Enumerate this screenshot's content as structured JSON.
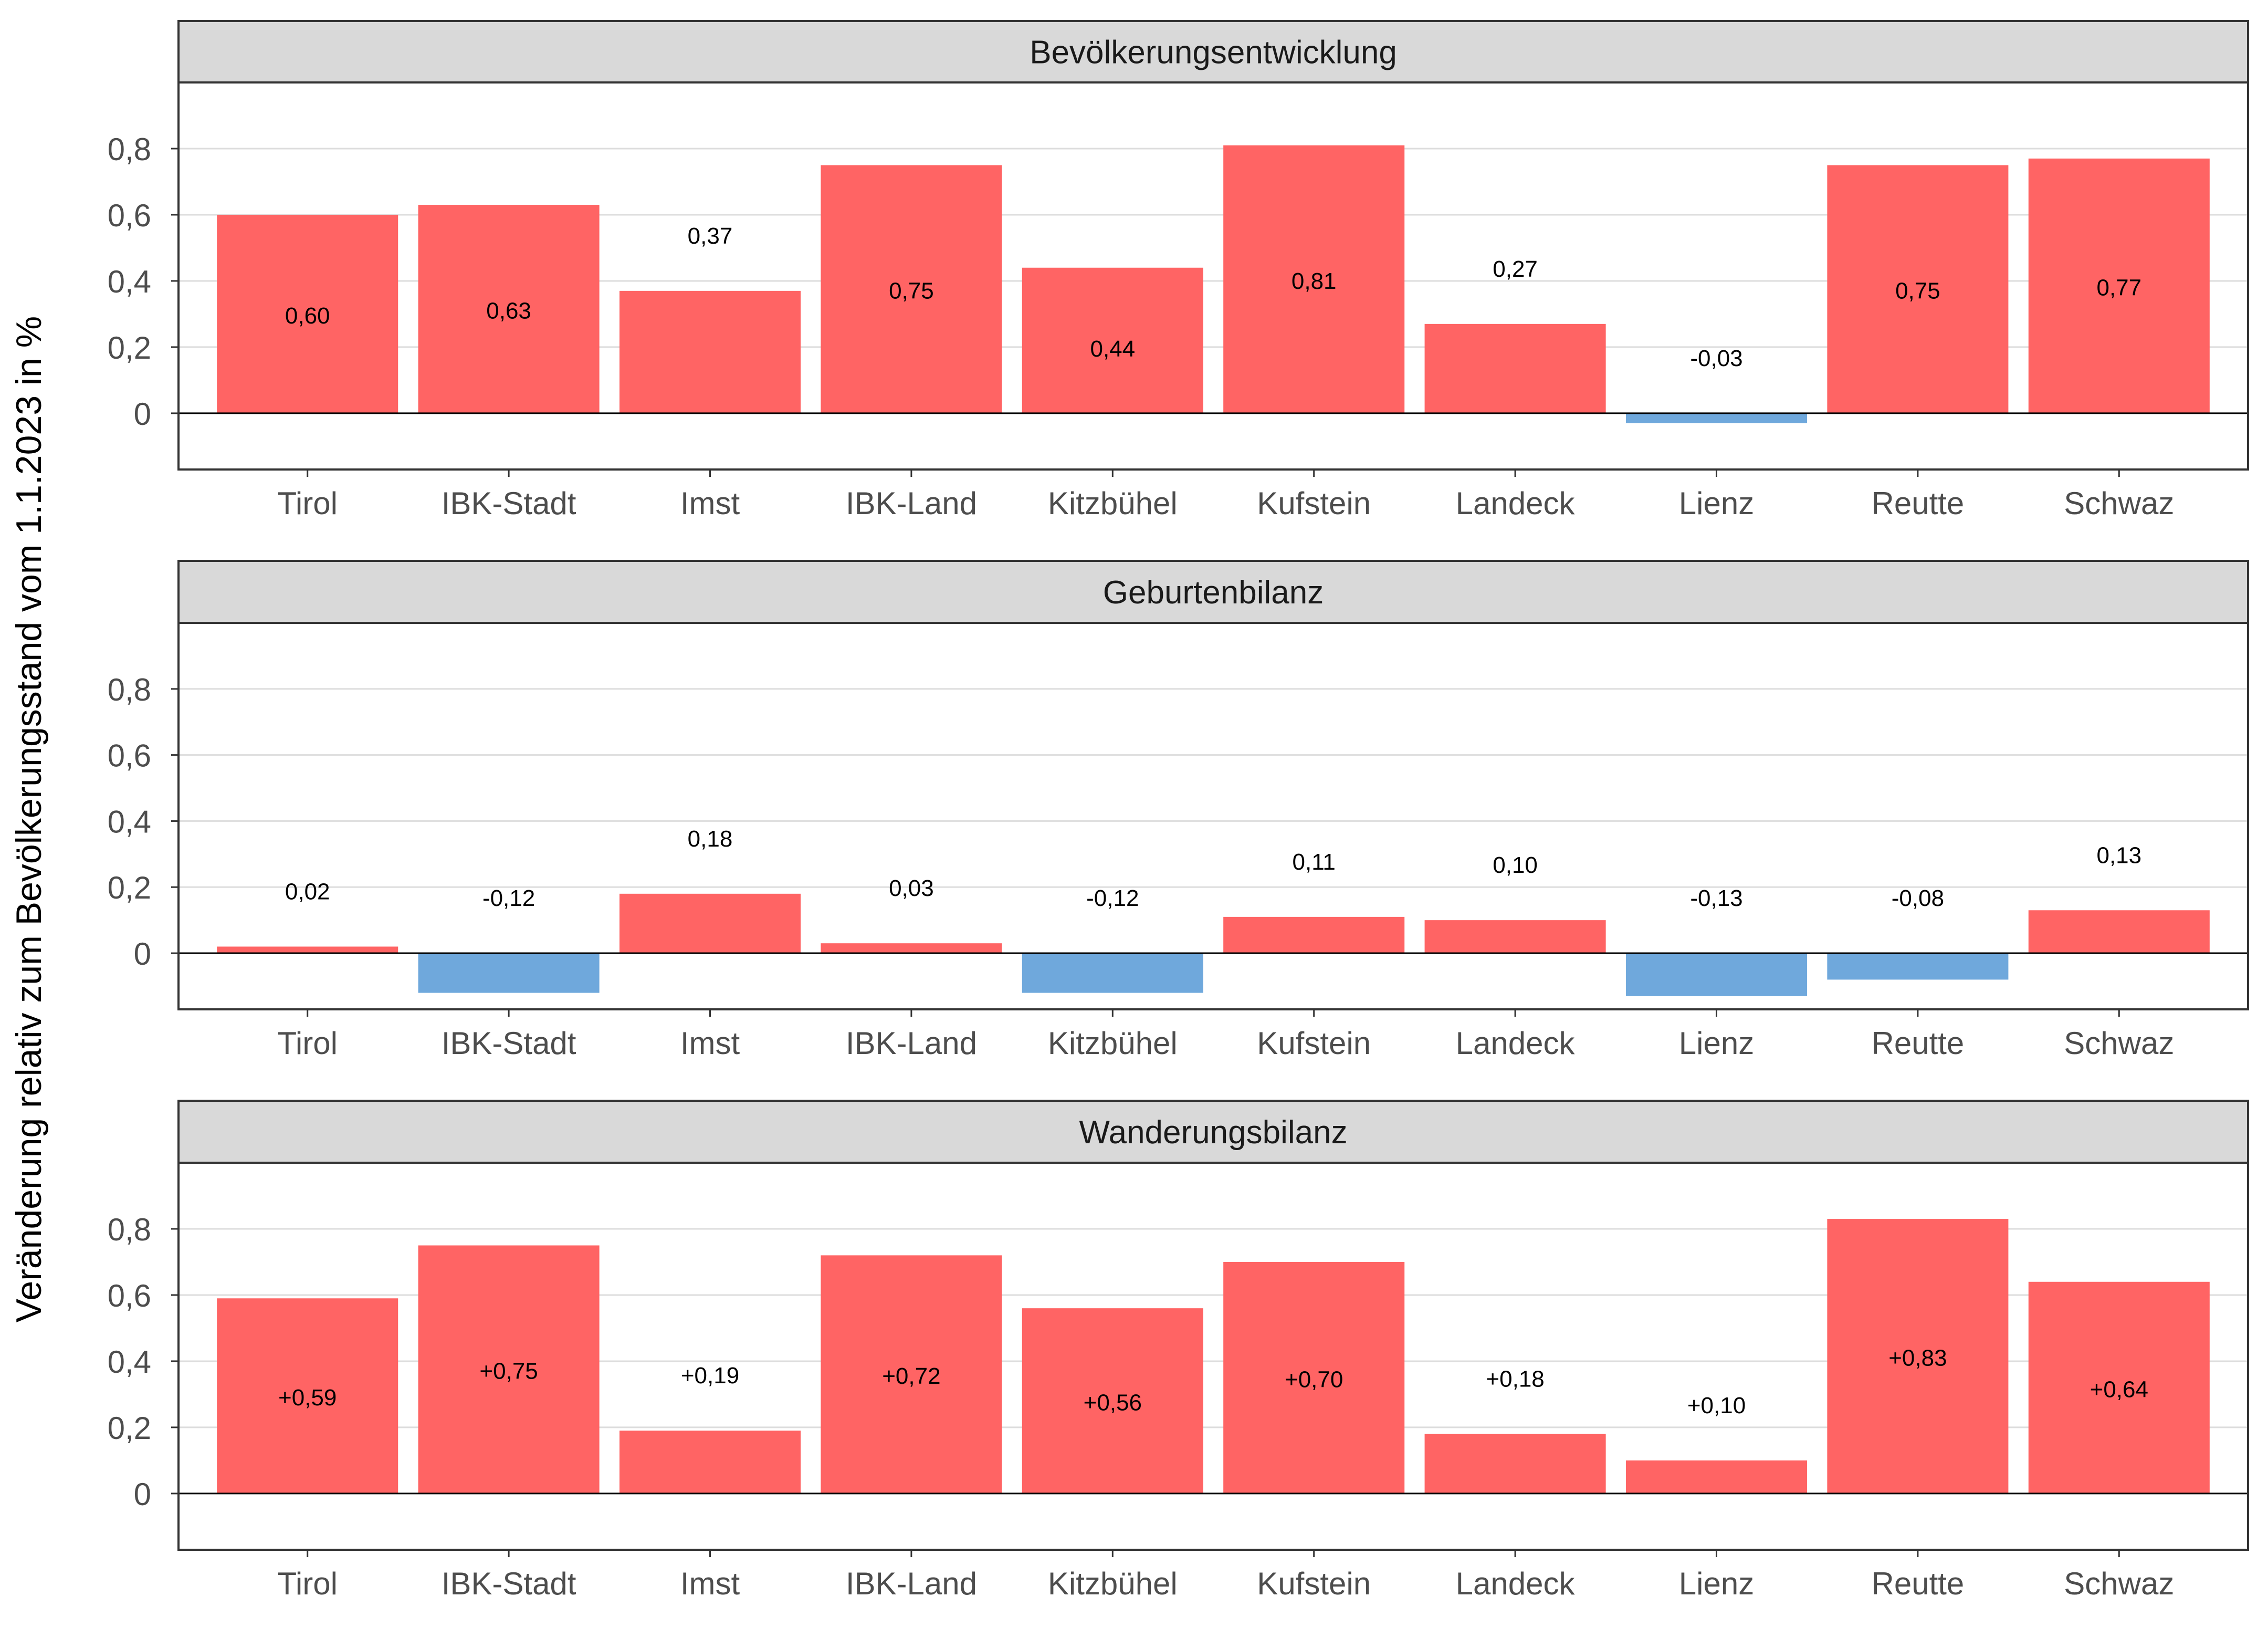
{
  "ylabel": "Veränderung relativ zum Bevölkerungsstand vom 1.1.2023 in %",
  "colors": {
    "positive": "#ff6464",
    "negative": "#6fa8dc",
    "strip": "#d9d9d9",
    "grid": "#dddddd",
    "axis_text": "#4d4d4d",
    "frame": "#333333"
  },
  "chart_data": [
    {
      "type": "bar",
      "title": "Bevölkerungsentwicklung",
      "categories": [
        "Tirol",
        "IBK-Stadt",
        "Imst",
        "IBK-Land",
        "Kitzbühel",
        "Kufstein",
        "Landeck",
        "Lienz",
        "Reutte",
        "Schwaz"
      ],
      "values": [
        0.6,
        0.63,
        0.37,
        0.75,
        0.44,
        0.81,
        0.27,
        -0.03,
        0.75,
        0.77
      ],
      "labels": [
        "0,60",
        "0,63",
        "0,37",
        "0,75",
        "0,44",
        "0,81",
        "0,27",
        "-0,03",
        "0,75",
        "0,77"
      ],
      "yticks": [
        "0",
        "0,2",
        "0,4",
        "0,6",
        "0,8"
      ],
      "ylim": [
        -0.17,
        1.0
      ],
      "grid": true
    },
    {
      "type": "bar",
      "title": "Geburtenbilanz",
      "categories": [
        "Tirol",
        "IBK-Stadt",
        "Imst",
        "IBK-Land",
        "Kitzbühel",
        "Kufstein",
        "Landeck",
        "Lienz",
        "Reutte",
        "Schwaz"
      ],
      "values": [
        0.02,
        -0.12,
        0.18,
        0.03,
        -0.12,
        0.11,
        0.1,
        -0.13,
        -0.08,
        0.13
      ],
      "labels": [
        "0,02",
        "-0,12",
        "0,18",
        "0,03",
        "-0,12",
        "0,11",
        "0,10",
        "-0,13",
        "-0,08",
        "0,13"
      ],
      "yticks": [
        "0",
        "0,2",
        "0,4",
        "0,6",
        "0,8"
      ],
      "ylim": [
        -0.17,
        1.0
      ],
      "grid": true
    },
    {
      "type": "bar",
      "title": "Wanderungsbilanz",
      "categories": [
        "Tirol",
        "IBK-Stadt",
        "Imst",
        "IBK-Land",
        "Kitzbühel",
        "Kufstein",
        "Landeck",
        "Lienz",
        "Reutte",
        "Schwaz"
      ],
      "values": [
        0.59,
        0.75,
        0.19,
        0.72,
        0.56,
        0.7,
        0.18,
        0.1,
        0.83,
        0.64
      ],
      "labels": [
        "+0,59",
        "+0,75",
        "+0,19",
        "+0,72",
        "+0,56",
        "+0,70",
        "+0,18",
        "+0,10",
        "+0,83",
        "+0,64"
      ],
      "yticks": [
        "0",
        "0,2",
        "0,4",
        "0,6",
        "0,8"
      ],
      "ylim": [
        -0.17,
        1.0
      ],
      "grid": true
    }
  ]
}
